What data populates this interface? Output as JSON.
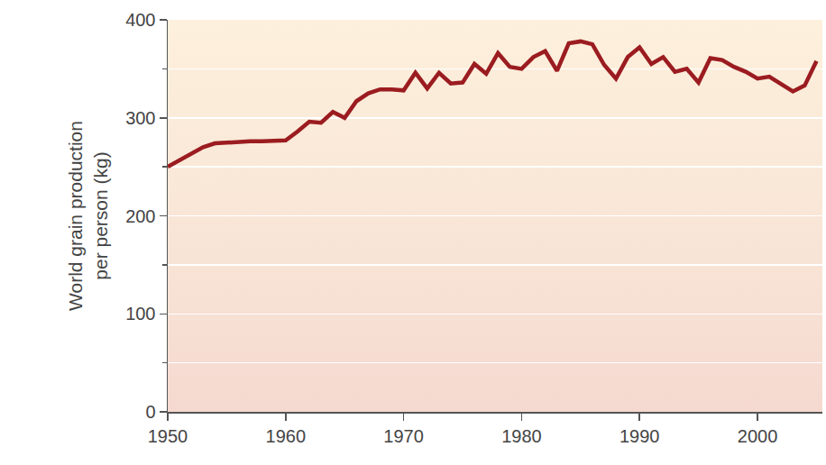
{
  "chart_data": {
    "type": "line",
    "y_label": "World grain production per person (kg)",
    "x": [
      1950,
      1951,
      1952,
      1953,
      1954,
      1955,
      1956,
      1957,
      1958,
      1959,
      1960,
      1961,
      1962,
      1963,
      1964,
      1965,
      1966,
      1967,
      1968,
      1969,
      1970,
      1971,
      1972,
      1973,
      1974,
      1975,
      1976,
      1977,
      1978,
      1979,
      1980,
      1981,
      1982,
      1983,
      1984,
      1985,
      1986,
      1987,
      1988,
      1989,
      1990,
      1991,
      1992,
      1993,
      1994,
      1995,
      1996,
      1997,
      1998,
      1999,
      2000,
      2001,
      2002,
      2003,
      2004,
      2005
    ],
    "values": [
      250,
      257,
      263,
      270,
      274,
      275,
      275,
      276,
      276,
      276,
      277,
      286,
      296,
      295,
      306,
      300,
      317,
      325,
      329,
      329,
      328,
      346,
      330,
      346,
      335,
      336,
      355,
      345,
      366,
      352,
      350,
      362,
      368,
      348,
      376,
      378,
      375,
      354,
      340,
      362,
      372,
      355,
      362,
      347,
      350,
      336,
      361,
      359,
      352,
      347,
      340,
      342,
      335,
      327,
      333,
      358
    ],
    "color": "#9b1c20",
    "xlim": [
      1950,
      2005.5
    ],
    "xticks": [
      1950,
      1960,
      1970,
      1980,
      1990,
      2000
    ],
    "ylim": [
      0,
      400
    ],
    "yticks": [
      0,
      100,
      200,
      300,
      400
    ],
    "grid": true
  }
}
